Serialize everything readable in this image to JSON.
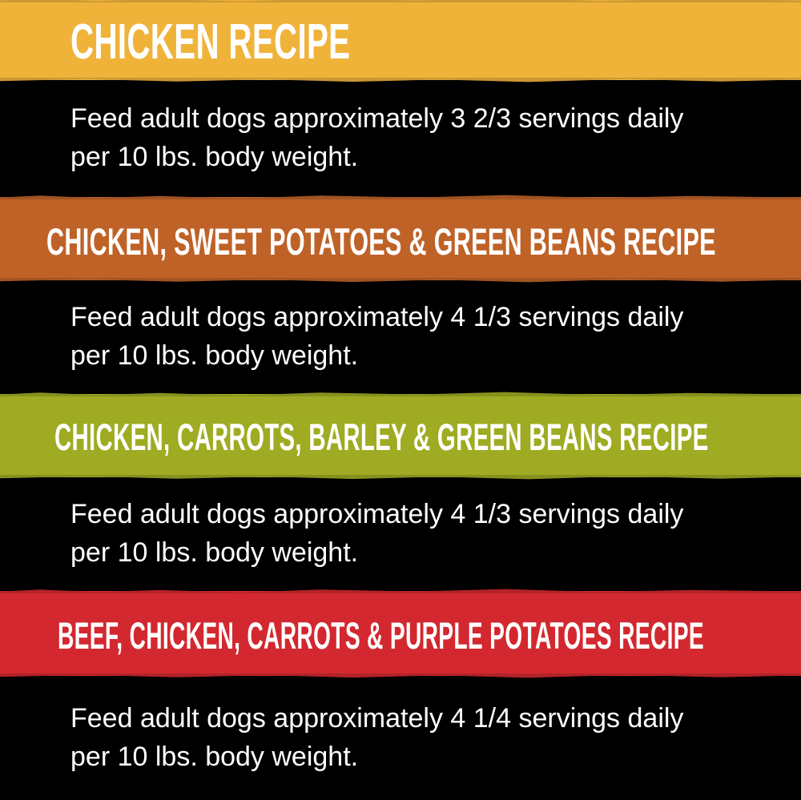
{
  "sections": [
    {
      "title": "CHICKEN RECIPE",
      "line1": "Feed adult dogs approximately 3 2/3 servings daily",
      "line2": "per 10 lbs. body weight.",
      "color": "#F0B33A"
    },
    {
      "title": "CHICKEN, SWEET POTATOES & GREEN BEANS RECIPE",
      "line1": "Feed adult dogs approximately 4 1/3 servings daily",
      "line2": "per 10 lbs. body weight.",
      "color": "#BF6228"
    },
    {
      "title": "CHICKEN, CARROTS, BARLEY & GREEN BEANS RECIPE",
      "line1": "Feed adult dogs approximately 4 1/3 servings daily",
      "line2": "per 10 lbs. body weight.",
      "color": "#9FAB22"
    },
    {
      "title": "BEEF, CHICKEN, CARROTS & PURPLE POTATOES RECIPE",
      "line1": "Feed adult dogs approximately 4 1/4 servings daily",
      "line2": "per 10 lbs. body weight.",
      "color": "#D3282F"
    }
  ]
}
